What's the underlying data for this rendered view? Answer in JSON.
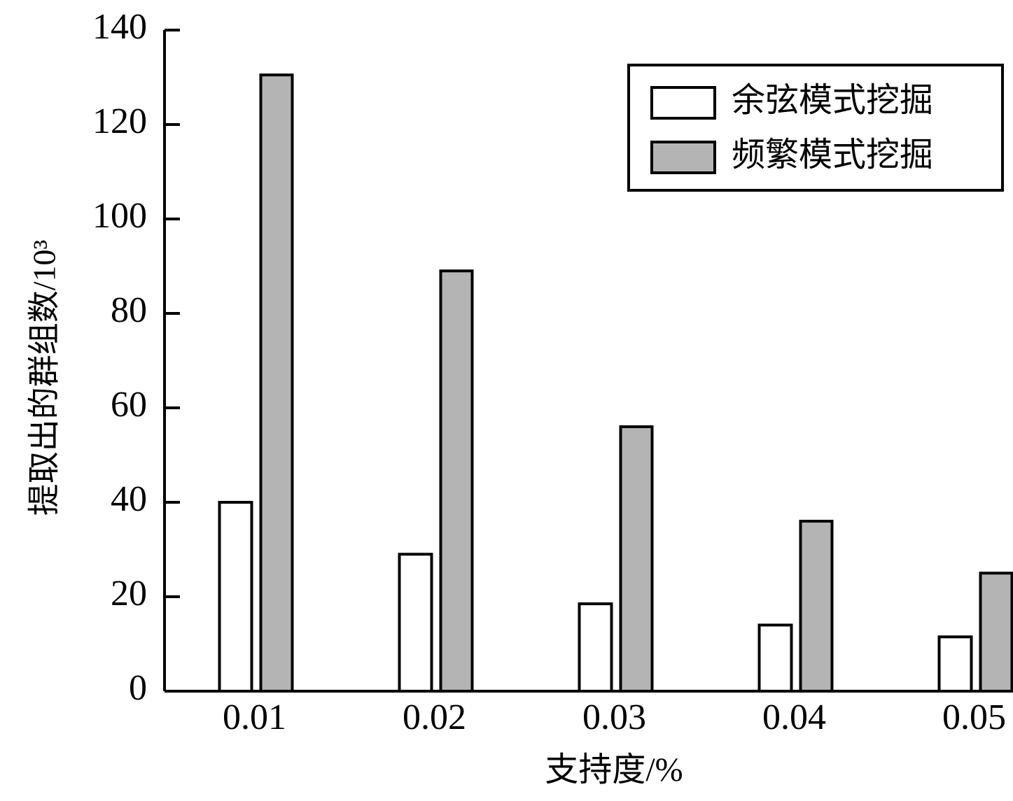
{
  "chart_data": {
    "type": "bar",
    "x_label": "支持度/%",
    "y_label": "提取出的群组数/10³",
    "categories": [
      "0.01",
      "0.02",
      "0.03",
      "0.04",
      "0.05"
    ],
    "series": [
      {
        "name": "余弦模式挖掘",
        "color": "#ffffff",
        "values": [
          40,
          29,
          18.5,
          14,
          11.5
        ]
      },
      {
        "name": "频繁模式挖掘",
        "color": "#b4b4b4",
        "values": [
          130.5,
          89,
          56,
          36,
          25
        ]
      }
    ],
    "ylim": [
      0,
      140
    ],
    "yticks": [
      0,
      20,
      40,
      60,
      80,
      100,
      120,
      140
    ],
    "grid": false,
    "legend": "upper right"
  }
}
